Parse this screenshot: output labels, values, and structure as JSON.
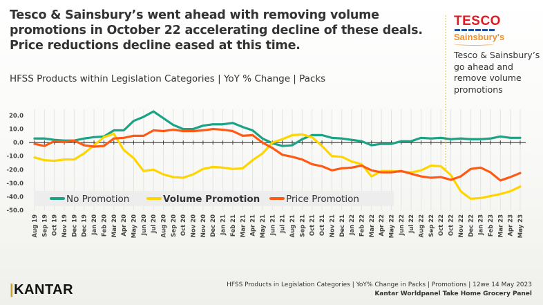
{
  "title": "Tesco & Sainsbury’s went ahead with removing volume promotions in October 22 accelerating decline of these deals. Price reductions decline eased at this time.",
  "subtitle": "HFSS Products within Legislation Categories | YoY % Change | Packs",
  "side_panel": {
    "logo_tesco": "TESCO",
    "logo_sainsburys": "Sainsbury's",
    "note": "Tesco & Sainsbury’s go ahead and remove volume promotions",
    "marker_color": "#f5d000"
  },
  "footer": {
    "brand": "KANTAR",
    "source_line1": "HFSS Products in Legislation Categories | YoY% Change in Packs | Promotions | 12we 14 May 2023",
    "source_line2": "Kantar Worldpanel Take Home Grocery Panel"
  },
  "chart_data": {
    "type": "line",
    "title": "",
    "xlabel": "",
    "ylabel": "",
    "ylim": [
      -50,
      20
    ],
    "yticks": [
      "20.0",
      "10.0",
      "0.0",
      "-10.0",
      "-20.0",
      "-30.0",
      "-40.0",
      "-50.0"
    ],
    "ytick_values": [
      20,
      10,
      0,
      -10,
      -20,
      -30,
      -40,
      -50
    ],
    "grid": "vertical",
    "legend": "bottom-inside",
    "annotation_marker_category": "Oct 22",
    "categories": [
      "Aug 19",
      "Sep 19",
      "Oct 19",
      "Nov 19",
      "Dec 19",
      "Dec 19",
      "Jan 20",
      "Feb 20",
      "Mar 20",
      "Apr 20",
      "May 20",
      "Jun 20",
      "Jul 20",
      "Aug 20",
      "Sep 20",
      "Oct 20",
      "Nov 20",
      "Nov 20",
      "Dec 20",
      "Jan 21",
      "Feb 21",
      "Mar 21",
      "Apr 21",
      "May 21",
      "Jun 21",
      "Jul 21",
      "Aug 21",
      "Sep 21",
      "Oct 21",
      "Oct 21",
      "Nov 21",
      "Dec 21",
      "Jan 22",
      "Feb 22",
      "Mar 22",
      "Apr 22",
      "May 22",
      "Jun 22",
      "Jul 22",
      "Aug 22",
      "Sep 22",
      "Oct 22",
      "Oct 22",
      "Nov 22",
      "Dec 22",
      "Jan 23",
      "Feb 23",
      "Mar 23",
      "Apr 23",
      "May 23"
    ],
    "series": [
      {
        "name": "No Promotion",
        "color": "#1aa385",
        "values": [
          3,
          3,
          2,
          1.5,
          1.5,
          3,
          4,
          4.5,
          9,
          9,
          16,
          19,
          23,
          18,
          13,
          10,
          10,
          12.5,
          13.5,
          13.5,
          14.5,
          11.5,
          9,
          3,
          -0.5,
          -2.5,
          -2,
          2.5,
          5.5,
          5.5,
          3.5,
          3,
          2,
          1,
          -2,
          -1,
          -1,
          1,
          1,
          3.5,
          3,
          3.5,
          2.5,
          3,
          2.5,
          2.5,
          3,
          4.5,
          3.5,
          3.5
        ]
      },
      {
        "name": "Volume Promotion",
        "color": "#ffd500",
        "values": [
          -11,
          -13,
          -13.5,
          -12.5,
          -12.5,
          -8,
          -2,
          4,
          6.5,
          -5.5,
          -11.5,
          -21,
          -20,
          -23.5,
          -25.5,
          -26,
          -23.5,
          -19.5,
          -18,
          -18.5,
          -19.5,
          -19,
          -13,
          -8,
          0,
          2.5,
          5.5,
          6,
          4,
          -2.5,
          -10,
          -10.5,
          -14,
          -16,
          -25,
          -21,
          -21,
          -21.5,
          -22,
          -20.5,
          -17,
          -17.5,
          -24,
          -36,
          -41.5,
          -41,
          -39.5,
          -38,
          -36,
          -32.5
        ]
      },
      {
        "name": "Price Promotion",
        "color": "#ff5a14",
        "values": [
          -1,
          -2.5,
          1,
          0.5,
          1.5,
          -2,
          -3,
          -2.5,
          3,
          3.5,
          5,
          5,
          9,
          8.5,
          9.5,
          8.5,
          8.5,
          9,
          10,
          9.5,
          8.5,
          5,
          5.5,
          0,
          -4,
          -9,
          -10.5,
          -12.5,
          -16,
          -17.5,
          -20.5,
          -19,
          -18.5,
          -17,
          -20.5,
          -22,
          -22,
          -21,
          -23,
          -25,
          -26,
          -25.5,
          -27.5,
          -25,
          -19.5,
          -18.5,
          -22,
          -28,
          -25.5,
          -22.5
        ]
      }
    ]
  }
}
